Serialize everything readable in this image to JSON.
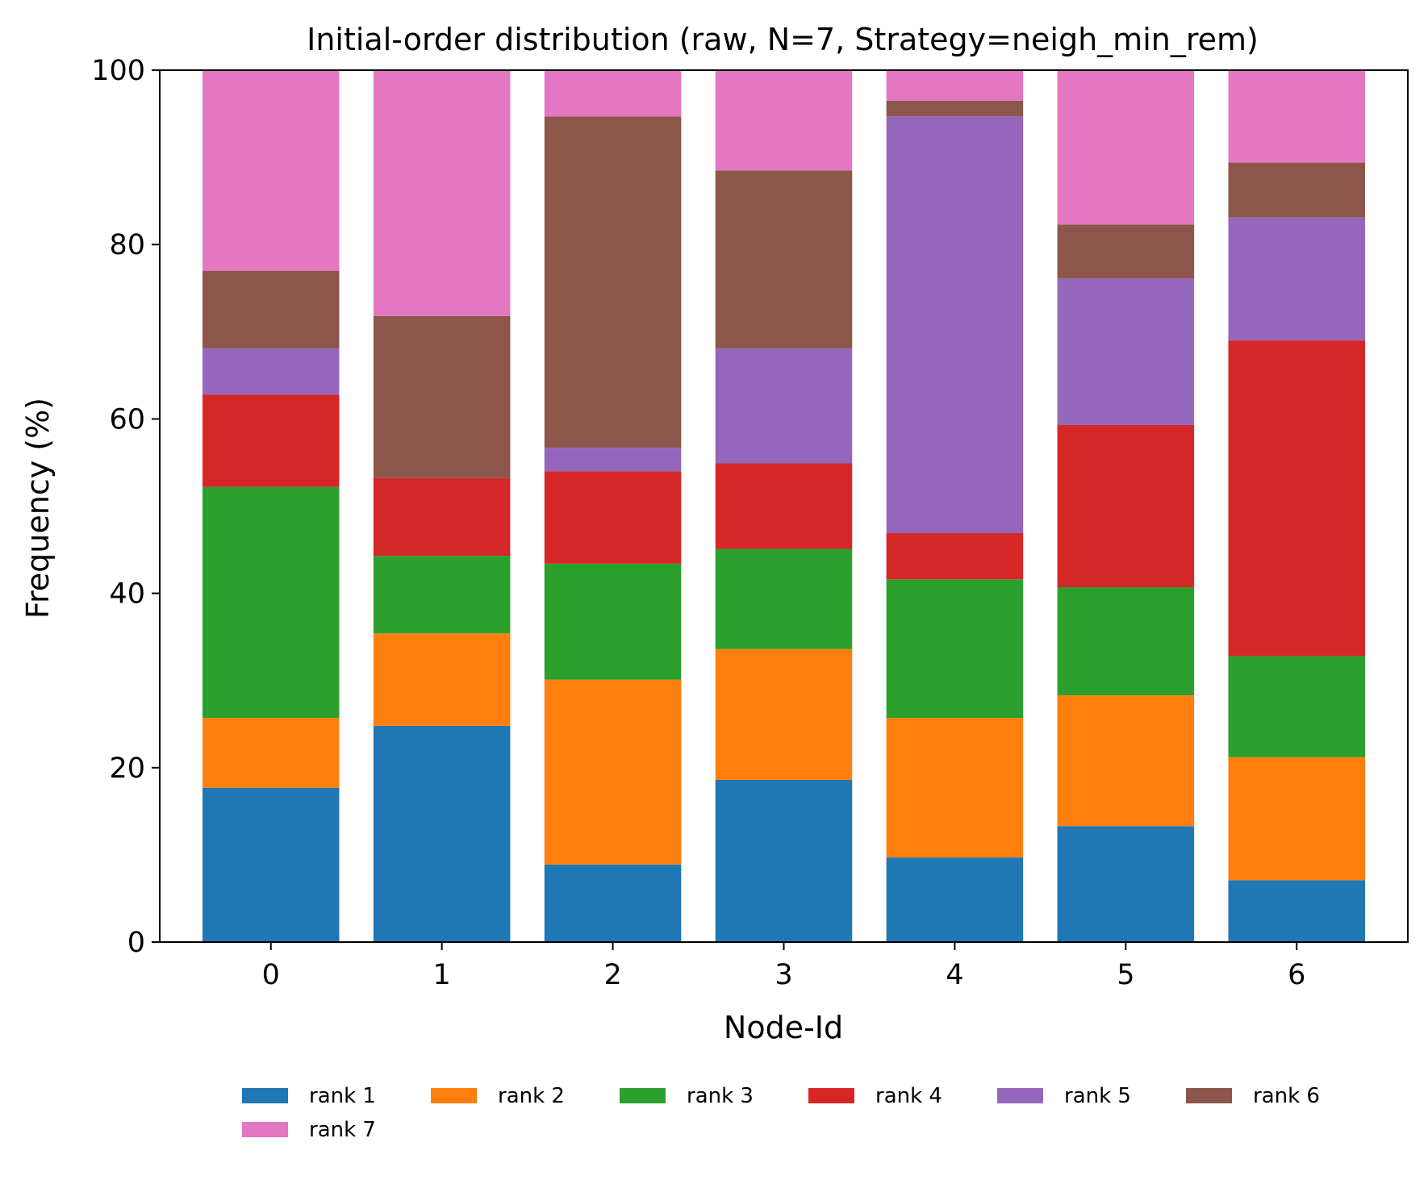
{
  "chart_data": {
    "type": "bar",
    "stacked": true,
    "title": "Initial-order distribution (raw, N=7, Strategy=neigh_min_rem)",
    "xlabel": "Node-Id",
    "ylabel": "Frequency (%)",
    "ylim": [
      0,
      100
    ],
    "yticks": [
      0,
      20,
      40,
      60,
      80,
      100
    ],
    "categories": [
      "0",
      "1",
      "2",
      "3",
      "4",
      "5",
      "6"
    ],
    "legend_position": "bottom-center",
    "grid": false,
    "series": [
      {
        "name": "rank 1",
        "color": "#1f77b4",
        "values": [
          17.7,
          24.8,
          8.9,
          18.6,
          9.7,
          13.3,
          7.1
        ]
      },
      {
        "name": "rank 2",
        "color": "#ff7f0e",
        "values": [
          8.0,
          10.6,
          21.2,
          15.0,
          16.0,
          15.0,
          14.1
        ]
      },
      {
        "name": "rank 3",
        "color": "#2ca02c",
        "values": [
          26.5,
          8.9,
          13.3,
          11.5,
          15.9,
          12.4,
          11.6
        ]
      },
      {
        "name": "rank 4",
        "color": "#d62728",
        "values": [
          10.6,
          8.9,
          10.6,
          9.8,
          5.3,
          18.6,
          36.2
        ]
      },
      {
        "name": "rank 5",
        "color": "#9467bd",
        "values": [
          5.3,
          0.0,
          2.7,
          13.2,
          47.8,
          16.8,
          14.1
        ]
      },
      {
        "name": "rank 6",
        "color": "#8c564b",
        "values": [
          8.9,
          18.6,
          38.0,
          20.4,
          1.8,
          6.2,
          6.3
        ]
      },
      {
        "name": "rank 7",
        "color": "#e377c2",
        "values": [
          23.0,
          28.2,
          5.3,
          11.5,
          3.5,
          17.7,
          10.6
        ]
      }
    ]
  }
}
